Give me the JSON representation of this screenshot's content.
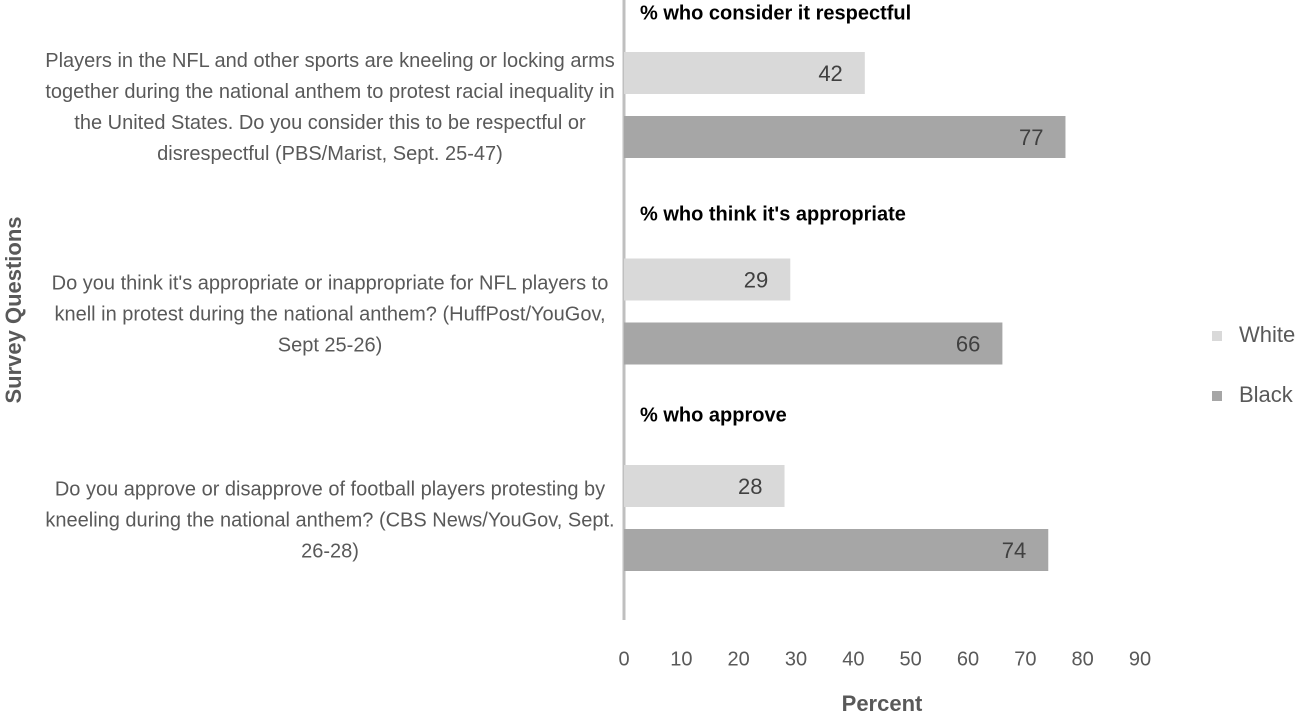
{
  "chart_data": {
    "type": "hbar",
    "categories": [
      "Players in the NFL and other sports are kneeling or locking arms together during the national anthem to protest racial inequality in the United States. Do you consider this to be respectful or disrespectful (PBS/Marist, Sept. 25-47)",
      "Do you think it's appropriate or inappropriate for NFL players to knell in protest during the national anthem? (HuffPost/YouGov, Sept 25-26)",
      "Do you approve or disapprove of football players protesting by kneeling during the national anthem? (CBS News/YouGov, Sept. 26-28)"
    ],
    "annotations": [
      "% who consider it respectful",
      "% who think it's appropriate",
      "% who approve"
    ],
    "series": [
      {
        "name": "White",
        "color": "#d9d9d9",
        "values": [
          42,
          29,
          28
        ]
      },
      {
        "name": "Black",
        "color": "#a6a6a6",
        "values": [
          77,
          66,
          74
        ]
      }
    ],
    "xlim": [
      0,
      90
    ],
    "xticks": [
      0,
      10,
      20,
      30,
      40,
      50,
      60,
      70,
      80,
      90
    ],
    "x_label": "Percent",
    "y_label": "Survey Questions",
    "legend": "right"
  }
}
